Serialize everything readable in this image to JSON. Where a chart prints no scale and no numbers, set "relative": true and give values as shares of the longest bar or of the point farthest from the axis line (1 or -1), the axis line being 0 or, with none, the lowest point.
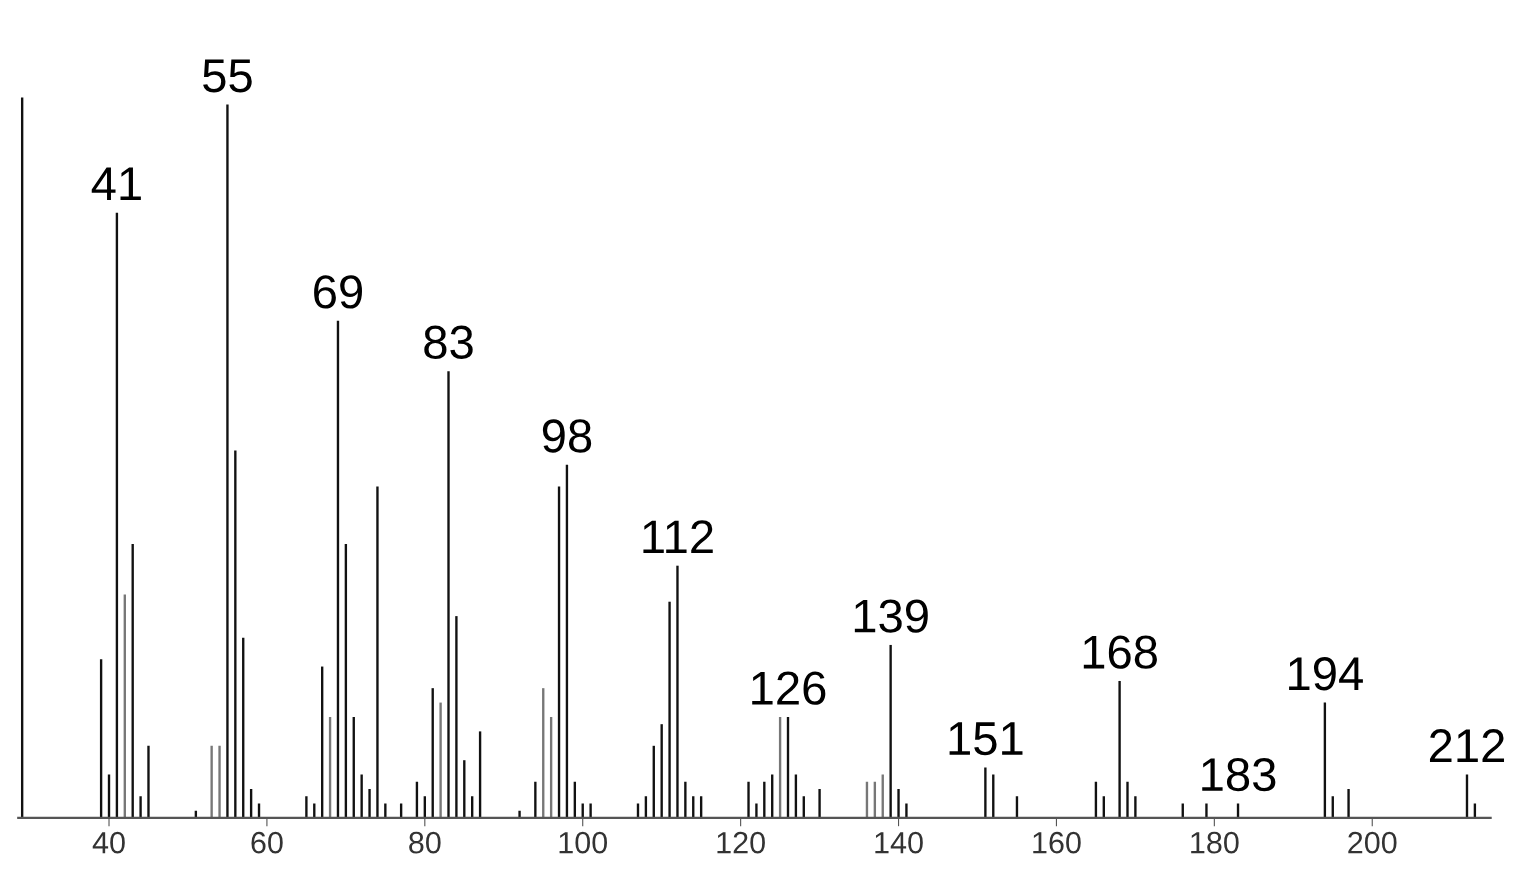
{
  "chart_data": {
    "type": "bar",
    "relative": true,
    "x": [
      29,
      39,
      40,
      41,
      42,
      43,
      44,
      45,
      51,
      53,
      54,
      55,
      56,
      57,
      58,
      59,
      65,
      66,
      67,
      68,
      69,
      70,
      71,
      72,
      73,
      74,
      75,
      77,
      79,
      80,
      81,
      82,
      83,
      84,
      85,
      86,
      87,
      92,
      94,
      95,
      96,
      97,
      98,
      99,
      100,
      101,
      107,
      108,
      109,
      110,
      111,
      112,
      113,
      114,
      115,
      121,
      122,
      123,
      124,
      125,
      126,
      127,
      128,
      130,
      136,
      137,
      138,
      139,
      140,
      141,
      151,
      152,
      155,
      165,
      166,
      168,
      169,
      170,
      176,
      179,
      183,
      194,
      195,
      197,
      212,
      213
    ],
    "values": [
      1.0,
      0.22,
      0.06,
      0.84,
      0.31,
      0.38,
      0.03,
      0.1,
      0.01,
      0.1,
      0.1,
      0.99,
      0.51,
      0.25,
      0.04,
      0.02,
      0.03,
      0.02,
      0.21,
      0.14,
      0.69,
      0.38,
      0.14,
      0.06,
      0.04,
      0.46,
      0.02,
      0.02,
      0.05,
      0.03,
      0.18,
      0.16,
      0.62,
      0.28,
      0.08,
      0.03,
      0.12,
      0.01,
      0.05,
      0.18,
      0.14,
      0.46,
      0.49,
      0.05,
      0.02,
      0.02,
      0.02,
      0.03,
      0.1,
      0.13,
      0.3,
      0.35,
      0.05,
      0.03,
      0.03,
      0.05,
      0.02,
      0.05,
      0.06,
      0.14,
      0.14,
      0.06,
      0.03,
      0.04,
      0.05,
      0.05,
      0.06,
      0.24,
      0.04,
      0.02,
      0.07,
      0.06,
      0.03,
      0.05,
      0.03,
      0.19,
      0.05,
      0.03,
      0.02,
      0.02,
      0.02,
      0.16,
      0.03,
      0.04,
      0.06,
      0.02
    ],
    "colors": [
      "#111111",
      "#111111",
      "#111111",
      "#111111",
      "#777777",
      "#111111",
      "#111111",
      "#111111",
      "#111111",
      "#777777",
      "#777777",
      "#111111",
      "#111111",
      "#111111",
      "#111111",
      "#111111",
      "#111111",
      "#111111",
      "#111111",
      "#777777",
      "#111111",
      "#111111",
      "#111111",
      "#111111",
      "#111111",
      "#111111",
      "#111111",
      "#111111",
      "#111111",
      "#111111",
      "#111111",
      "#777777",
      "#111111",
      "#111111",
      "#111111",
      "#111111",
      "#111111",
      "#111111",
      "#111111",
      "#777777",
      "#777777",
      "#111111",
      "#111111",
      "#111111",
      "#111111",
      "#111111",
      "#111111",
      "#111111",
      "#111111",
      "#111111",
      "#111111",
      "#111111",
      "#111111",
      "#111111",
      "#111111",
      "#111111",
      "#111111",
      "#111111",
      "#111111",
      "#777777",
      "#111111",
      "#111111",
      "#111111",
      "#111111",
      "#777777",
      "#777777",
      "#777777",
      "#111111",
      "#111111",
      "#111111",
      "#111111",
      "#111111",
      "#111111",
      "#111111",
      "#111111",
      "#111111",
      "#111111",
      "#111111",
      "#111111",
      "#111111",
      "#111111",
      "#111111",
      "#111111",
      "#111111",
      "#111111",
      "#111111"
    ],
    "xlim": [
      28.5,
      215
    ],
    "xticks": [
      40,
      60,
      80,
      100,
      120,
      140,
      160,
      180,
      200
    ],
    "annotations": [
      {
        "text": "41",
        "x": 41,
        "y": 0.84
      },
      {
        "text": "55",
        "x": 55,
        "y": 0.99
      },
      {
        "text": "69",
        "x": 69,
        "y": 0.69
      },
      {
        "text": "83",
        "x": 83,
        "y": 0.62
      },
      {
        "text": "98",
        "x": 98,
        "y": 0.49
      },
      {
        "text": "112",
        "x": 112,
        "y": 0.35
      },
      {
        "text": "126",
        "x": 126,
        "y": 0.14
      },
      {
        "text": "139",
        "x": 139,
        "y": 0.24
      },
      {
        "text": "151",
        "x": 151,
        "y": 0.07
      },
      {
        "text": "168",
        "x": 168,
        "y": 0.19
      },
      {
        "text": "183",
        "x": 183,
        "y": 0.02
      },
      {
        "text": "194",
        "x": 194,
        "y": 0.16
      },
      {
        "text": "212",
        "x": 212,
        "y": 0.06
      }
    ],
    "grid": false
  }
}
